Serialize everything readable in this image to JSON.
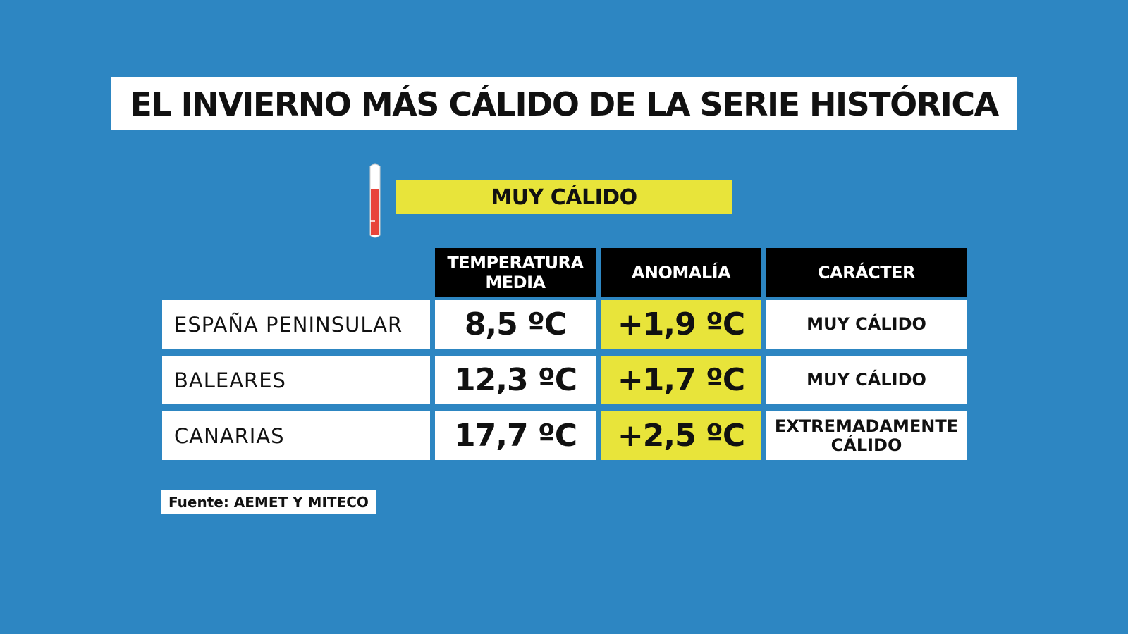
{
  "title": "EL INVIERNO MÁS CÁLIDO DE LA SERIE HISTÓRICA",
  "legend": {
    "label": "MUY CÁLIDO",
    "thermometer_icon": "thermometer-icon",
    "thermometer_fill_level": 0.65,
    "color": "#e8e43a"
  },
  "table": {
    "headers": [
      "TEMPERATURA MEDIA",
      "ANOMALÍA",
      "CARÁCTER"
    ],
    "rows": [
      {
        "region": "ESPAÑA PENINSULAR",
        "temperature": "8,5 ºC",
        "anomaly": "+1,9 ºC",
        "character": "MUY CÁLIDO"
      },
      {
        "region": "BALEARES",
        "temperature": "12,3 ºC",
        "anomaly": "+1,7 ºC",
        "character": "MUY CÁLIDO"
      },
      {
        "region": "CANARIAS",
        "temperature": "17,7 ºC",
        "anomaly": "+2,5 ºC",
        "character": "EXTREMADAMENTE CÁLIDO"
      }
    ]
  },
  "source": "Fuente: AEMET Y MITECO",
  "colors": {
    "background": "#2d86c2",
    "highlight_yellow": "#e8e43a",
    "header_black": "#000000",
    "thermometer_red": "#e8443a"
  }
}
